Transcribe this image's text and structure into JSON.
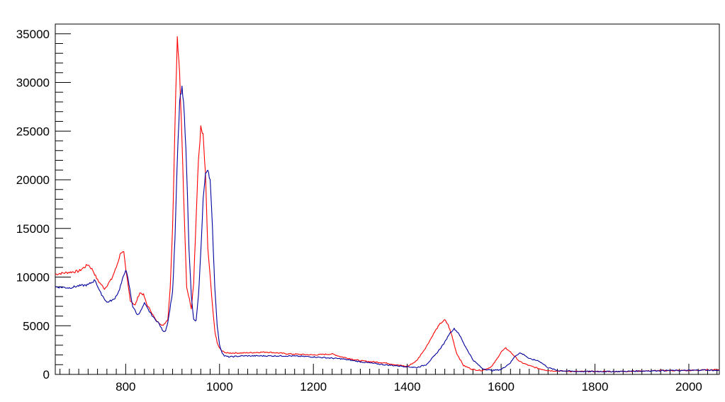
{
  "chart_data": {
    "type": "line",
    "title": "",
    "xlabel": "",
    "ylabel": "",
    "xlim": [
      650,
      2065
    ],
    "ylim": [
      0,
      36000
    ],
    "grid": false,
    "legend": "none",
    "x_ticks": [
      "800",
      "1000",
      "1200",
      "1400",
      "1600",
      "1800",
      "2000"
    ],
    "y_ticks": [
      "0",
      "5000",
      "10000",
      "15000",
      "20000",
      "25000",
      "30000",
      "35000"
    ],
    "x_tick_values": [
      800,
      1000,
      1200,
      1400,
      1600,
      1800,
      2000
    ],
    "y_tick_values": [
      0,
      5000,
      10000,
      15000,
      20000,
      25000,
      30000,
      35000
    ],
    "series": [
      {
        "color": "#ff0000",
        "x": [
          650,
          680,
          700,
          720,
          730,
          740,
          755,
          770,
          780,
          790,
          796,
          800,
          810,
          820,
          830,
          838,
          845,
          855,
          865,
          880,
          890,
          895,
          900,
          905,
          910,
          915,
          920,
          925,
          930,
          940,
          945,
          950,
          955,
          960,
          965,
          970,
          975,
          985,
          990,
          995,
          1000,
          1005,
          1015,
          1050,
          1100,
          1150,
          1200,
          1240,
          1260,
          1300,
          1350,
          1400,
          1420,
          1440,
          1460,
          1470,
          1480,
          1487,
          1495,
          1505,
          1520,
          1540,
          1560,
          1580,
          1590,
          1600,
          1610,
          1620,
          1640,
          1660,
          1680,
          1700,
          1720,
          1760,
          1800,
          1850,
          1900,
          1950,
          2000,
          2030,
          2065
        ],
        "y": [
          10300,
          10500,
          10600,
          11300,
          10700,
          9700,
          8800,
          9800,
          11000,
          12600,
          12500,
          10800,
          7600,
          7100,
          8400,
          8200,
          7200,
          6400,
          5500,
          5000,
          5700,
          9000,
          15000,
          26000,
          34800,
          31000,
          24000,
          16000,
          9000,
          6800,
          9500,
          16000,
          22000,
          25300,
          24500,
          20500,
          13000,
          7000,
          4500,
          3200,
          2700,
          2400,
          2200,
          2200,
          2300,
          2100,
          2000,
          2100,
          1800,
          1400,
          1200,
          800,
          1400,
          2800,
          4500,
          5200,
          5600,
          5100,
          4000,
          2200,
          900,
          500,
          400,
          800,
          1500,
          2300,
          2700,
          2300,
          1300,
          900,
          600,
          400,
          350,
          300,
          300,
          300,
          350,
          400,
          400,
          450,
          500
        ]
      },
      {
        "color": "#00009e",
        "x": [
          650,
          680,
          700,
          720,
          735,
          745,
          760,
          775,
          785,
          795,
          800,
          805,
          815,
          825,
          832,
          840,
          850,
          860,
          870,
          880,
          885,
          890,
          900,
          905,
          910,
          915,
          920,
          925,
          930,
          935,
          940,
          945,
          950,
          955,
          960,
          965,
          970,
          975,
          980,
          985,
          990,
          995,
          1000,
          1005,
          1010,
          1020,
          1050,
          1100,
          1150,
          1200,
          1260,
          1300,
          1350,
          1400,
          1420,
          1440,
          1460,
          1480,
          1490,
          1500,
          1510,
          1520,
          1540,
          1560,
          1580,
          1600,
          1620,
          1630,
          1640,
          1650,
          1660,
          1680,
          1700,
          1720,
          1760,
          1800,
          1850,
          1900,
          1950,
          2000,
          2030,
          2065
        ],
        "y": [
          9000,
          8900,
          9100,
          9200,
          9700,
          8500,
          7400,
          7700,
          8500,
          10000,
          10800,
          9800,
          7000,
          6100,
          6500,
          7300,
          6500,
          5800,
          5300,
          4400,
          4500,
          5400,
          8500,
          14000,
          22000,
          28000,
          29300,
          27000,
          21000,
          13000,
          8000,
          5600,
          5500,
          8000,
          12500,
          18000,
          20500,
          21200,
          20000,
          15000,
          9000,
          5000,
          3000,
          2300,
          1900,
          1800,
          1900,
          1900,
          1900,
          1800,
          1600,
          1300,
          1000,
          800,
          700,
          1000,
          2000,
          3300,
          4200,
          4700,
          4200,
          3200,
          1500,
          600,
          400,
          500,
          1200,
          1900,
          2200,
          2000,
          1600,
          1400,
          700,
          400,
          300,
          300,
          300,
          350,
          400,
          400,
          450,
          400
        ]
      }
    ]
  }
}
